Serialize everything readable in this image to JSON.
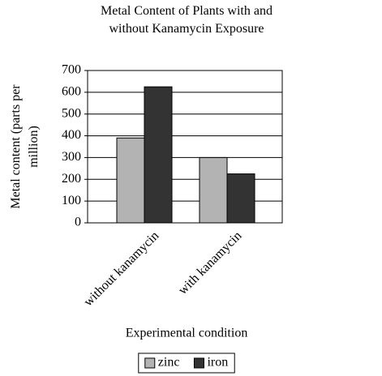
{
  "chart_data": {
    "type": "bar",
    "title": "Metal Content of Plants with and without Kanamycin Exposure",
    "ylabel": "Metal content (parts per million)",
    "xlabel": "Experimental condition",
    "categories": [
      "without kanamycin",
      "with kanamycin"
    ],
    "series": [
      {
        "name": "zinc",
        "color": "#b3b3b3",
        "values": [
          390,
          300
        ]
      },
      {
        "name": "iron",
        "color": "#333333",
        "values": [
          625,
          225
        ]
      }
    ],
    "ylim": [
      0,
      700
    ],
    "yticks": [
      0,
      100,
      200,
      300,
      400,
      500,
      600,
      700
    ],
    "grid": true,
    "legend": "bottom"
  }
}
